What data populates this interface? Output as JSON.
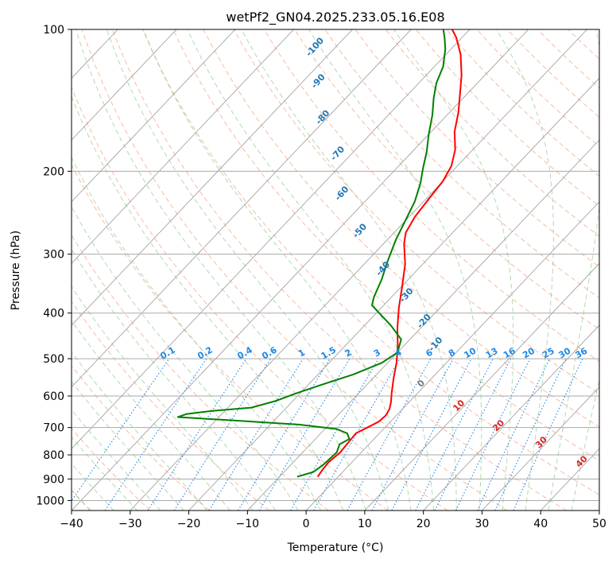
{
  "chart_data": {
    "type": "line",
    "title": "wetPf2_GN04.2025.233.05.16.E08",
    "xlabel": "Temperature (°C)",
    "ylabel": "Pressure (hPa)",
    "xlim": [
      -40,
      50
    ],
    "ylim": [
      1050,
      100
    ],
    "y_scale": "log",
    "x_ticks": [
      -40,
      -30,
      -20,
      -10,
      0,
      10,
      20,
      30,
      40,
      50
    ],
    "x_tick_labels": [
      "−40",
      "−30",
      "−20",
      "−10",
      "0",
      "10",
      "20",
      "30",
      "40",
      "50"
    ],
    "y_ticks": [
      100,
      200,
      300,
      400,
      500,
      600,
      700,
      800,
      900,
      1000
    ],
    "y_tick_labels": [
      "100",
      "200",
      "300",
      "400",
      "500",
      "600",
      "700",
      "800",
      "900",
      "1000"
    ],
    "grid": true,
    "skew": "skew-T log-p",
    "series": [
      {
        "color": "#ff0000",
        "points": [
          [
            -3.5,
            890
          ],
          [
            -3.8,
            860
          ],
          [
            -4.0,
            830
          ],
          [
            -3.6,
            790
          ],
          [
            -3.8,
            755
          ],
          [
            -4.0,
            720
          ],
          [
            -3.0,
            700
          ],
          [
            -2.0,
            680
          ],
          [
            -1.8,
            660
          ],
          [
            -2.2,
            640
          ],
          [
            -3.0,
            620
          ],
          [
            -4.5,
            590
          ],
          [
            -6.5,
            550
          ],
          [
            -8.5,
            510
          ],
          [
            -11.0,
            470
          ],
          [
            -14.0,
            430
          ],
          [
            -17.0,
            390
          ],
          [
            -20.0,
            350
          ],
          [
            -23.0,
            315
          ],
          [
            -26.5,
            285
          ],
          [
            -28.0,
            270
          ],
          [
            -29.0,
            250
          ],
          [
            -29.5,
            230
          ],
          [
            -30.0,
            210
          ],
          [
            -31.0,
            195
          ],
          [
            -33.0,
            180
          ],
          [
            -36.0,
            165
          ],
          [
            -38.5,
            150
          ],
          [
            -41.0,
            138
          ],
          [
            -44.0,
            125
          ],
          [
            -47.5,
            113
          ],
          [
            -51.0,
            104
          ],
          [
            -53.0,
            100
          ]
        ]
      },
      {
        "color": "#008000",
        "points": [
          [
            -7.0,
            890
          ],
          [
            -5.0,
            870
          ],
          [
            -4.5,
            840
          ],
          [
            -4.2,
            790
          ],
          [
            -5.0,
            760
          ],
          [
            -4.2,
            740
          ],
          [
            -5.5,
            720
          ],
          [
            -8.0,
            705
          ],
          [
            -15.0,
            690
          ],
          [
            -28.0,
            675
          ],
          [
            -37.0,
            665
          ],
          [
            -36.0,
            655
          ],
          [
            -32.0,
            645
          ],
          [
            -26.0,
            635
          ],
          [
            -23.0,
            615
          ],
          [
            -21.0,
            595
          ],
          [
            -18.0,
            570
          ],
          [
            -14.0,
            540
          ],
          [
            -11.0,
            510
          ],
          [
            -10.0,
            485
          ],
          [
            -11.5,
            455
          ],
          [
            -15.5,
            425
          ],
          [
            -19.5,
            400
          ],
          [
            -22.0,
            385
          ],
          [
            -23.0,
            370
          ],
          [
            -24.5,
            340
          ],
          [
            -26.5,
            310
          ],
          [
            -28.5,
            280
          ],
          [
            -30.0,
            255
          ],
          [
            -31.5,
            232
          ],
          [
            -33.5,
            212
          ],
          [
            -35.5,
            197
          ],
          [
            -37.5,
            182
          ],
          [
            -40.0,
            167
          ],
          [
            -42.5,
            152
          ],
          [
            -45.0,
            140
          ],
          [
            -47.0,
            130
          ],
          [
            -48.5,
            120
          ],
          [
            -51.0,
            110
          ],
          [
            -53.0,
            104
          ],
          [
            -54.5,
            100
          ]
        ]
      }
    ],
    "mixing_ratio_labels": [
      "0.1",
      "0.2",
      "0.4",
      "0.6",
      "1",
      "1.5",
      "2",
      "3",
      "4",
      "6",
      "8",
      "10",
      "13",
      "16",
      "20",
      "25",
      "30",
      "36"
    ],
    "moist_adiabat_labels": [
      "0",
      "10",
      "20",
      "30",
      "40"
    ],
    "dry_adiabat_labels": [
      "-100",
      "-90",
      "-80",
      "-70",
      "-60",
      "-50",
      "-40",
      "-30",
      "-20",
      "-10"
    ]
  }
}
